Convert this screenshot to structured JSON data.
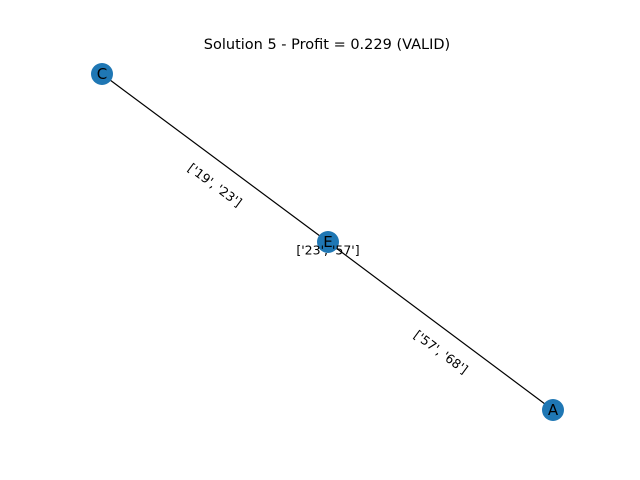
{
  "figure": {
    "title": "Solution 5 - Profit = 0.229 (VALID)",
    "node_color": "#1f77b4",
    "edge_color": "#000000"
  },
  "graph": {
    "nodes": [
      {
        "id": "C",
        "label": "C"
      },
      {
        "id": "E",
        "label": "E"
      },
      {
        "id": "A",
        "label": "A"
      }
    ],
    "edges": [
      {
        "source": "C",
        "target": "E",
        "label": "['19', '23']"
      },
      {
        "source": "E",
        "target": "A",
        "label": "['57', '68']"
      },
      {
        "source": "E",
        "target": "E",
        "label": "['23', '57']"
      }
    ]
  }
}
